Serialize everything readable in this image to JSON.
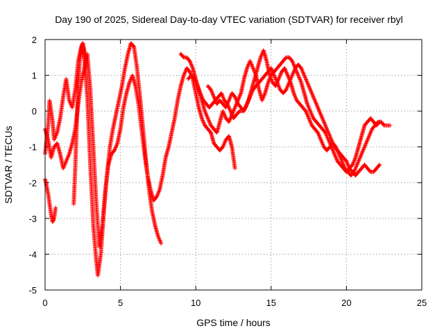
{
  "chart_data": {
    "type": "scatter",
    "title": "Day 190 of 2025, Sidereal Day-to-day VTEC variation (SDTVAR) for receiver rbyl",
    "xlabel": "GPS time / hours",
    "ylabel": "SDTVAR / TECUs",
    "xlim": [
      0,
      25
    ],
    "ylim": [
      -5,
      2
    ],
    "xticks": [
      "0",
      "5",
      "10",
      "15",
      "20",
      "25"
    ],
    "yticks": [
      "2",
      "1",
      "0",
      "-1",
      "-2",
      "-3",
      "-4",
      "-5"
    ],
    "grid": true,
    "marker": "+",
    "series": [
      {
        "name": "SDTVAR",
        "color": "#ff0000",
        "tracks": [
          {
            "x": [
              0.0,
              0.2,
              0.3,
              0.5,
              0.6,
              0.8,
              1.0,
              1.2,
              1.4,
              1.6,
              1.8,
              2.0,
              2.2,
              2.4,
              2.5,
              2.6,
              2.8,
              3.0,
              3.2,
              3.4,
              3.5,
              3.7,
              3.9,
              4.1,
              4.3,
              4.5,
              4.7,
              4.9,
              5.1,
              5.3,
              5.5,
              5.7,
              5.9,
              6.1,
              6.3,
              6.5,
              6.7,
              6.9,
              7.1,
              7.3,
              7.5,
              7.7
            ],
            "y": [
              -1.2,
              -0.4,
              0.3,
              -0.3,
              -0.8,
              -0.6,
              -0.2,
              0.4,
              0.9,
              0.3,
              0.1,
              0.6,
              1.4,
              1.8,
              1.9,
              1.5,
              0.4,
              -1.5,
              -3.2,
              -4.2,
              -4.6,
              -4.0,
              -2.8,
              -1.8,
              -1.0,
              -0.5,
              -0.1,
              0.3,
              0.7,
              1.2,
              1.6,
              1.9,
              1.8,
              1.2,
              0.4,
              -0.5,
              -1.4,
              -2.2,
              -2.8,
              -3.2,
              -3.5,
              -3.7
            ]
          },
          {
            "x": [
              0.0,
              0.2,
              0.4,
              0.6,
              0.8,
              1.0,
              1.2,
              1.4,
              1.6,
              1.8,
              2.0,
              2.2,
              2.4,
              2.6,
              2.8,
              3.0,
              3.2,
              3.4,
              3.6,
              3.8,
              4.0,
              4.2,
              4.4,
              4.6,
              4.8,
              5.0,
              5.2,
              5.4,
              5.6,
              5.8,
              6.0,
              6.2,
              6.4,
              6.6,
              6.8,
              7.0,
              7.2,
              7.4,
              7.6,
              7.8,
              8.0,
              8.2,
              8.4,
              8.6,
              8.8,
              9.0,
              9.2,
              9.4,
              9.6,
              9.8,
              10.0,
              10.2,
              10.4,
              10.6,
              10.8,
              11.0,
              11.2,
              11.4,
              11.6,
              11.8,
              12.0,
              12.2,
              12.4,
              12.6
            ],
            "y": [
              -0.5,
              -0.8,
              -1.3,
              -1.0,
              -0.9,
              -1.2,
              -1.6,
              -1.4,
              -1.2,
              -0.9,
              -0.5,
              0.2,
              0.8,
              1.2,
              1.6,
              0.6,
              -1.0,
              -2.6,
              -3.8,
              -3.2,
              -2.2,
              -1.5,
              -1.2,
              -1.1,
              -0.9,
              -0.5,
              0.1,
              0.5,
              0.8,
              1.0,
              0.7,
              0.2,
              -0.5,
              -1.2,
              -1.8,
              -2.2,
              -2.5,
              -2.4,
              -2.2,
              -1.8,
              -1.3,
              -1.0,
              -0.6,
              -0.2,
              0.3,
              0.7,
              1.0,
              1.2,
              1.1,
              0.9,
              0.5,
              0.1,
              -0.2,
              -0.4,
              -0.5,
              -0.6,
              -0.9,
              -1.0,
              -1.1,
              -1.0,
              -0.8,
              -0.7,
              -1.0,
              -1.6
            ]
          },
          {
            "x": [
              0.0,
              0.1,
              0.2,
              0.3,
              0.4,
              0.5,
              0.6,
              0.7
            ],
            "y": [
              -1.9,
              -2.1,
              -2.3,
              -2.6,
              -2.9,
              -3.1,
              -3.0,
              -2.7
            ]
          },
          {
            "x": [
              1.9,
              2.0,
              2.1,
              2.2,
              2.3,
              2.4,
              2.5,
              2.6,
              2.7
            ],
            "y": [
              -2.6,
              -1.6,
              -0.4,
              0.8,
              1.4,
              1.7,
              1.9,
              1.7,
              1.2
            ]
          },
          {
            "x": [
              9.0,
              9.2,
              9.4,
              9.6,
              9.8,
              10.0,
              10.2,
              10.4,
              10.6,
              10.8,
              11.0,
              11.2,
              11.4,
              11.6,
              11.8,
              12.0,
              12.2,
              12.4,
              12.6,
              12.8,
              13.0,
              13.2,
              13.4,
              13.6,
              13.8,
              14.0,
              14.2,
              14.4,
              14.6,
              14.8,
              15.0,
              15.2,
              15.4,
              15.6,
              15.8,
              16.0,
              16.2,
              16.4,
              16.6,
              16.8,
              17.0,
              17.2,
              17.4,
              17.6,
              17.8,
              18.0,
              18.2,
              18.4,
              18.6,
              18.8,
              19.0,
              19.2,
              19.4,
              19.6,
              19.8,
              20.0,
              20.2,
              20.4,
              20.6,
              20.8,
              21.0,
              21.2,
              21.4,
              21.6,
              21.8,
              22.0,
              22.2
            ],
            "y": [
              1.6,
              1.5,
              1.5,
              1.4,
              1.2,
              0.9,
              0.6,
              0.3,
              0.0,
              -0.2,
              -0.4,
              -0.5,
              -0.6,
              -0.3,
              0.0,
              -0.2,
              -0.3,
              -0.1,
              0.1,
              0.3,
              0.5,
              0.9,
              1.2,
              1.4,
              1.2,
              1.0,
              0.6,
              0.3,
              0.5,
              0.8,
              1.0,
              1.1,
              1.2,
              1.3,
              1.4,
              1.5,
              1.5,
              1.4,
              1.2,
              1.0,
              0.8,
              0.5,
              0.2,
              0.0,
              -0.2,
              -0.3,
              -0.4,
              -0.5,
              -0.6,
              -0.8,
              -1.0,
              -1.2,
              -1.4,
              -1.5,
              -1.6,
              -1.7,
              -1.6,
              -1.5,
              -1.3,
              -1.0,
              -0.7,
              -0.4,
              -0.3,
              -0.2,
              -0.3,
              -0.4,
              -0.3
            ]
          },
          {
            "x": [
              9.5,
              9.7,
              9.9,
              10.1,
              10.3,
              10.5,
              10.7,
              10.9,
              11.1,
              11.3,
              11.5,
              11.7,
              11.9,
              12.1,
              12.3,
              12.5,
              12.7,
              12.9,
              13.1,
              13.3,
              13.5,
              13.7,
              13.9,
              14.1,
              14.3,
              14.5,
              14.7,
              14.9,
              15.1,
              15.3,
              15.5,
              15.7,
              15.9,
              16.1,
              16.3,
              16.5,
              16.7,
              16.9,
              17.1,
              17.3,
              17.5,
              17.7,
              17.9,
              18.1,
              18.3,
              18.5,
              18.7,
              18.9,
              19.1,
              19.3,
              19.5,
              19.7,
              19.9,
              20.1,
              20.3,
              20.5,
              20.7,
              20.9,
              21.1,
              21.3,
              21.5,
              21.7,
              21.9,
              22.1,
              22.3,
              22.5,
              22.7,
              22.9
            ],
            "y": [
              0.9,
              1.0,
              0.9,
              0.7,
              0.5,
              0.3,
              0.2,
              0.1,
              0.2,
              0.3,
              0.4,
              0.5,
              0.3,
              0.2,
              0.0,
              -0.2,
              -0.1,
              0.0,
              0.0,
              0.1,
              0.3,
              0.6,
              0.9,
              1.2,
              1.5,
              1.7,
              1.4,
              1.0,
              0.8,
              0.7,
              0.9,
              1.1,
              1.2,
              1.0,
              0.8,
              0.5,
              0.3,
              0.2,
              0.1,
              0.0,
              -0.2,
              -0.4,
              -0.5,
              -0.6,
              -0.8,
              -1.0,
              -1.1,
              -1.0,
              -0.9,
              -1.0,
              -1.2,
              -1.4,
              -1.6,
              -1.7,
              -1.8,
              -1.7,
              -1.5,
              -1.3,
              -1.1,
              -0.9,
              -0.7,
              -0.5,
              -0.4,
              -0.3,
              -0.3,
              -0.4,
              -0.4,
              -0.4
            ]
          },
          {
            "x": [
              10.8,
              11.0,
              11.2,
              11.4,
              11.6,
              11.8,
              12.0,
              12.2,
              12.4,
              12.6,
              12.8,
              13.0,
              13.2,
              13.4,
              13.6,
              13.8,
              14.0,
              14.2,
              14.4,
              14.6,
              14.8,
              15.0,
              15.2,
              15.4,
              15.6,
              15.8,
              16.0,
              16.2,
              16.4,
              16.6,
              16.8,
              17.0,
              17.2,
              17.4,
              17.6,
              17.8,
              18.0,
              18.2,
              18.4,
              18.6,
              18.8,
              19.0,
              19.2,
              19.4,
              19.6,
              19.8,
              20.0,
              20.2,
              20.4,
              20.6,
              20.8,
              21.0,
              21.2,
              21.4,
              21.6,
              21.8,
              22.0,
              22.2
            ],
            "y": [
              0.7,
              0.6,
              0.4,
              0.2,
              0.3,
              0.2,
              0.1,
              0.3,
              0.5,
              0.4,
              0.2,
              0.1,
              0.0,
              0.2,
              0.4,
              0.6,
              0.7,
              0.8,
              0.9,
              1.0,
              1.1,
              1.2,
              1.0,
              0.8,
              0.6,
              0.5,
              0.6,
              0.8,
              1.0,
              1.2,
              1.3,
              1.2,
              1.0,
              0.8,
              0.6,
              0.4,
              0.2,
              0.0,
              -0.2,
              -0.4,
              -0.6,
              -0.8,
              -1.0,
              -1.1,
              -1.2,
              -1.3,
              -1.4,
              -1.6,
              -1.7,
              -1.8,
              -1.7,
              -1.6,
              -1.5,
              -1.6,
              -1.7,
              -1.7,
              -1.6,
              -1.5
            ]
          }
        ]
      }
    ]
  }
}
